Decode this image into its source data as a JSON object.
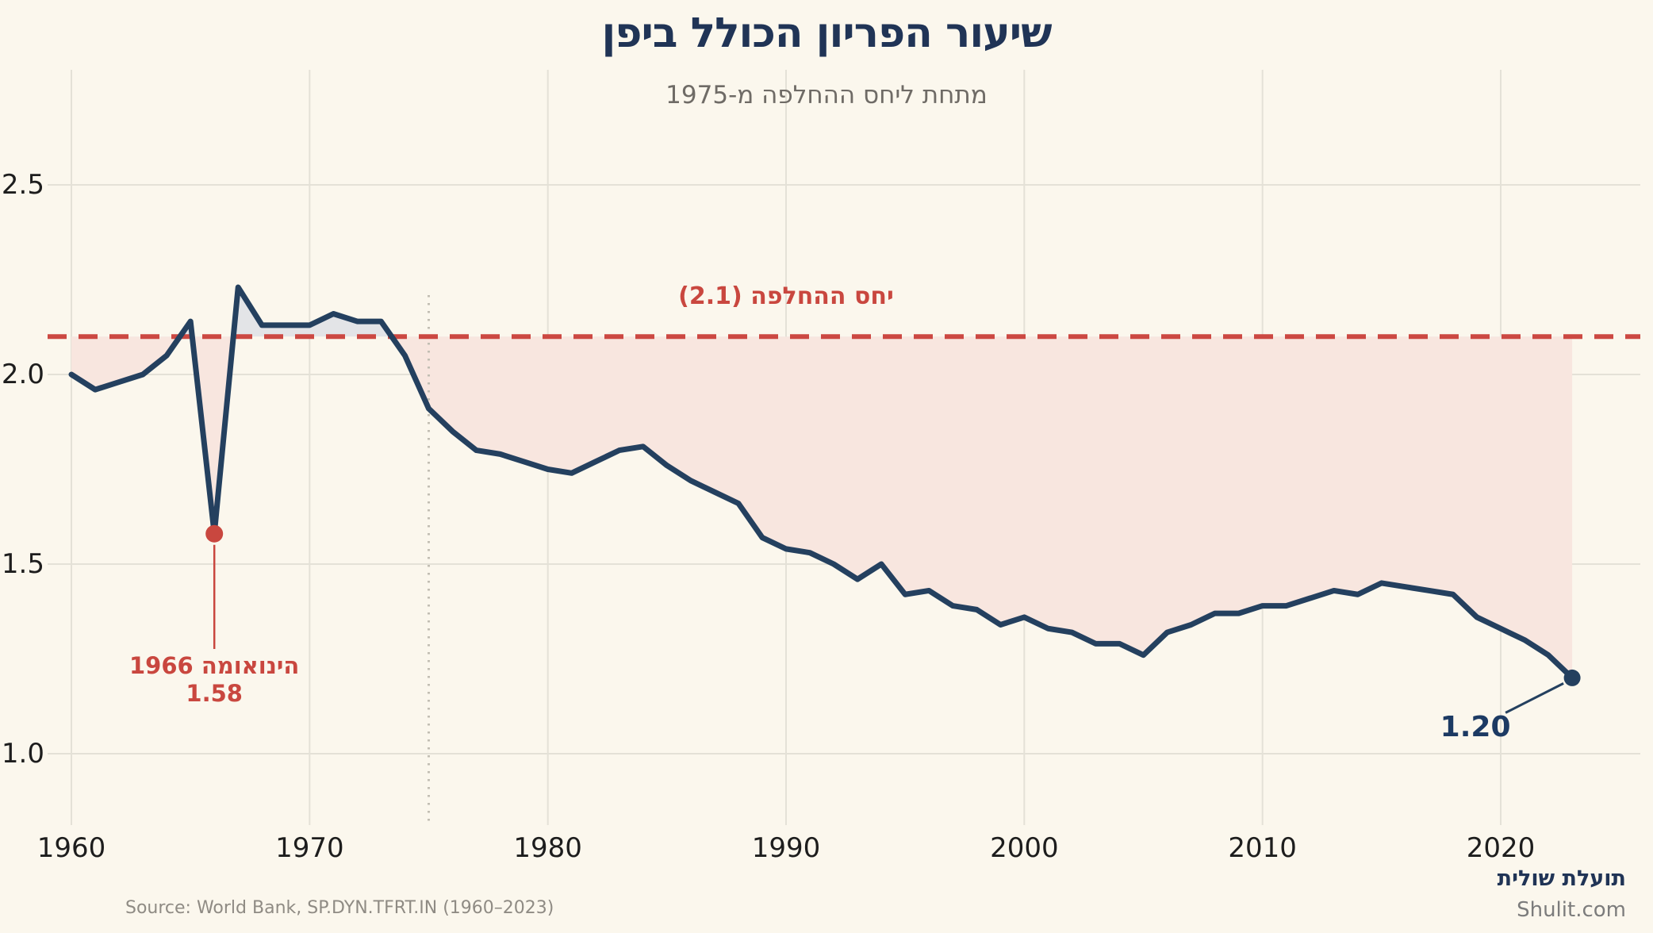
{
  "header": {
    "title": "שיעור הפריון הכולל ביפן",
    "subtitle": "מתחת ליחס ההחלפה מ-1975"
  },
  "chart_data": {
    "type": "area",
    "title": "שיעור הפריון הכולל ביפן",
    "subtitle": "מתחת ליחס ההחלפה מ-1975",
    "xlabel": "",
    "ylabel": "",
    "x": [
      1960,
      1961,
      1962,
      1963,
      1964,
      1965,
      1966,
      1967,
      1968,
      1969,
      1970,
      1971,
      1972,
      1973,
      1974,
      1975,
      1976,
      1977,
      1978,
      1979,
      1980,
      1981,
      1982,
      1983,
      1984,
      1985,
      1986,
      1987,
      1988,
      1989,
      1990,
      1991,
      1992,
      1993,
      1994,
      1995,
      1996,
      1997,
      1998,
      1999,
      2000,
      2001,
      2002,
      2003,
      2004,
      2005,
      2006,
      2007,
      2008,
      2009,
      2010,
      2011,
      2012,
      2013,
      2014,
      2015,
      2016,
      2017,
      2018,
      2019,
      2020,
      2021,
      2022,
      2023
    ],
    "values": [
      2.0,
      1.96,
      1.98,
      2.0,
      2.05,
      2.14,
      1.58,
      2.23,
      2.13,
      2.13,
      2.13,
      2.16,
      2.14,
      2.14,
      2.05,
      1.91,
      1.85,
      1.8,
      1.79,
      1.77,
      1.75,
      1.74,
      1.77,
      1.8,
      1.81,
      1.76,
      1.72,
      1.69,
      1.66,
      1.57,
      1.54,
      1.53,
      1.5,
      1.46,
      1.5,
      1.42,
      1.43,
      1.39,
      1.38,
      1.34,
      1.36,
      1.33,
      1.32,
      1.29,
      1.29,
      1.26,
      1.32,
      1.34,
      1.37,
      1.37,
      1.39,
      1.39,
      1.41,
      1.43,
      1.42,
      1.45,
      1.44,
      1.43,
      1.42,
      1.36,
      1.33,
      1.3,
      1.26,
      1.2
    ],
    "xticks": [
      1960,
      1970,
      1980,
      1990,
      2000,
      2010,
      2020
    ],
    "yticks": [
      1.0,
      1.5,
      2.0,
      2.5
    ],
    "xlim": [
      1959,
      2026
    ],
    "ylim": [
      0.81,
      2.8
    ],
    "grid": true,
    "legend": "none",
    "replacement_line": {
      "value": 2.1,
      "label": "יחס ההחלפה (2.1)"
    },
    "divider_year": 1975,
    "annotations": {
      "hinoeuma": {
        "year": 1966,
        "value": 1.58,
        "line1": "הינואומה 1966",
        "line2": "1.58"
      },
      "last_point": {
        "year": 2023,
        "value": 1.2,
        "label": "1.20"
      }
    },
    "colors": {
      "line": "#24405f",
      "replacement": "#cc4842",
      "annotation_red": "#c9473f",
      "fill_below": "#f8e6df",
      "fill_above": "#e3e4e7",
      "grid": "#e4e1d7",
      "divider": "#c2beb3",
      "background": "#fbf7ed"
    }
  },
  "footer": {
    "source": "Source: World Bank, SP.DYN.TFRT.IN (1960–2023)",
    "brand": "תועלת שולית",
    "site": "Shulit.com"
  }
}
